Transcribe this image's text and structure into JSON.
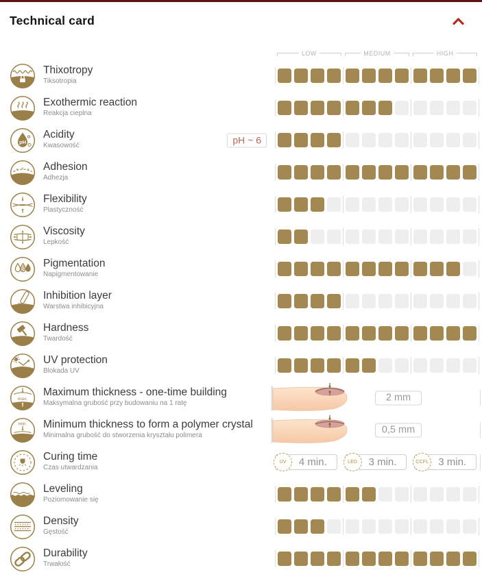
{
  "header": {
    "title": "Technical card",
    "collapse_icon": "chevron-up-icon"
  },
  "scale": {
    "labels": [
      "LOW",
      "MEDIUM",
      "HIGH"
    ],
    "segments": 3,
    "squares_per_segment": 4,
    "max_rating": 12
  },
  "colors": {
    "accent_gold": "#a38851",
    "empty_square": "#eeeeee",
    "icon_gold": "#9b7f49",
    "chevron_red": "#b5291c",
    "top_border": "#5e1512",
    "ph_text": "#b2695a",
    "scale_label": "#b3b3b3"
  },
  "rows": [
    {
      "type": "rating",
      "icon": "thixotropy-icon",
      "label": "Thixotropy",
      "sublabel": "Tiksotropia",
      "rating": 12,
      "max": 12
    },
    {
      "type": "rating",
      "icon": "exothermic-reaction-icon",
      "label": "Exothermic reaction",
      "sublabel": "Reakcja cieplna",
      "rating": 7,
      "max": 12
    },
    {
      "type": "rating",
      "icon": "acidity-icon",
      "label": "Acidity",
      "sublabel": "Kwasowość",
      "rating": 4,
      "max": 12,
      "badge": "pH ~ 6"
    },
    {
      "type": "rating",
      "icon": "adhesion-icon",
      "label": "Adhesion",
      "sublabel": "Adhezja",
      "rating": 12,
      "max": 12
    },
    {
      "type": "rating",
      "icon": "flexibility-icon",
      "label": "Flexibility",
      "sublabel": "Plastyczność",
      "rating": 3,
      "max": 12
    },
    {
      "type": "rating",
      "icon": "viscosity-icon",
      "label": "Viscosity",
      "sublabel": "Lepkość",
      "rating": 2,
      "max": 12
    },
    {
      "type": "rating",
      "icon": "pigmentation-icon",
      "label": "Pigmentation",
      "sublabel": "Napigmentowanie",
      "rating": 11,
      "max": 12
    },
    {
      "type": "rating",
      "icon": "inhibition-layer-icon",
      "label": "Inhibition layer",
      "sublabel": "Warstwa inhibicyjna",
      "rating": 4,
      "max": 12
    },
    {
      "type": "rating",
      "icon": "hardness-icon",
      "label": "Hardness",
      "sublabel": "Twardość",
      "rating": 12,
      "max": 12
    },
    {
      "type": "rating",
      "icon": "uv-protection-icon",
      "label": "UV protection",
      "sublabel": "Blokada UV",
      "rating": 6,
      "max": 12
    },
    {
      "type": "measure",
      "icon": "max-thickness-icon",
      "label": "Maximum thickness - one-time building",
      "sublabel": "Maksymalna grubość przy budowaniu na 1 ratę",
      "value": "2 mm",
      "illustration": "finger-nail-image",
      "variant": "max"
    },
    {
      "type": "measure",
      "icon": "min-thickness-icon",
      "label": "Minimum thickness to form a polymer crystal",
      "sublabel": "Minimalna grubość do stworzenia kryształu polimera",
      "value": "0,5 mm",
      "illustration": "finger-nail-image",
      "variant": "min"
    },
    {
      "type": "times",
      "icon": "curing-time-icon",
      "label": "Curing time",
      "sublabel": "Czas utwardzania",
      "times": [
        {
          "method": "UV",
          "value": "4 min."
        },
        {
          "method": "LED",
          "value": "3 min."
        },
        {
          "method": "CCFL",
          "value": "3 min."
        }
      ]
    },
    {
      "type": "rating",
      "icon": "leveling-icon",
      "label": "Leveling",
      "sublabel": "Poziomowanie się",
      "rating": 6,
      "max": 12
    },
    {
      "type": "rating",
      "icon": "density-icon",
      "label": "Density",
      "sublabel": "Gęstość",
      "rating": 3,
      "max": 12
    },
    {
      "type": "rating",
      "icon": "durability-icon",
      "label": "Durability",
      "sublabel": "Trwałość",
      "rating": 12,
      "max": 12
    }
  ]
}
